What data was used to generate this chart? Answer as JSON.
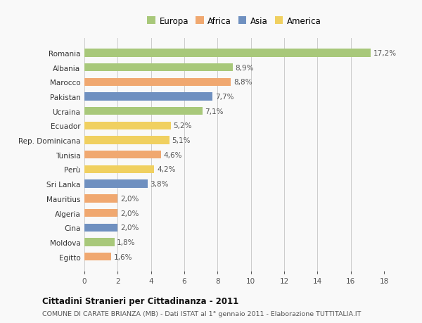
{
  "categories": [
    "Romania",
    "Albania",
    "Marocco",
    "Pakistan",
    "Ucraina",
    "Ecuador",
    "Rep. Dominicana",
    "Tunisia",
    "Perù",
    "Sri Lanka",
    "Mauritius",
    "Algeria",
    "Cina",
    "Moldova",
    "Egitto"
  ],
  "values": [
    17.2,
    8.9,
    8.8,
    7.7,
    7.1,
    5.2,
    5.1,
    4.6,
    4.2,
    3.8,
    2.0,
    2.0,
    2.0,
    1.8,
    1.6
  ],
  "labels": [
    "17,2%",
    "8,9%",
    "8,8%",
    "7,7%",
    "7,1%",
    "5,2%",
    "5,1%",
    "4,6%",
    "4,2%",
    "3,8%",
    "2,0%",
    "2,0%",
    "2,0%",
    "1,8%",
    "1,6%"
  ],
  "continents": [
    "Europa",
    "Europa",
    "Africa",
    "Asia",
    "Europa",
    "America",
    "America",
    "Africa",
    "America",
    "Asia",
    "Africa",
    "Africa",
    "Asia",
    "Europa",
    "Africa"
  ],
  "colors": {
    "Europa": "#a8c87a",
    "Africa": "#f0a870",
    "Asia": "#6f90c0",
    "America": "#f0d060"
  },
  "legend_order": [
    "Europa",
    "Africa",
    "Asia",
    "America"
  ],
  "xlim": [
    0,
    18
  ],
  "xticks": [
    0,
    2,
    4,
    6,
    8,
    10,
    12,
    14,
    16,
    18
  ],
  "title": "Cittadini Stranieri per Cittadinanza - 2011",
  "subtitle": "COMUNE DI CARATE BRIANZA (MB) - Dati ISTAT al 1° gennaio 2011 - Elaborazione TUTTITALIA.IT",
  "background_color": "#f9f9f9",
  "grid_color": "#cccccc",
  "bar_height": 0.55,
  "label_fontsize": 7.5,
  "ytick_fontsize": 7.5,
  "xtick_fontsize": 7.5,
  "legend_fontsize": 8.5,
  "title_fontsize": 8.5,
  "subtitle_fontsize": 6.8
}
